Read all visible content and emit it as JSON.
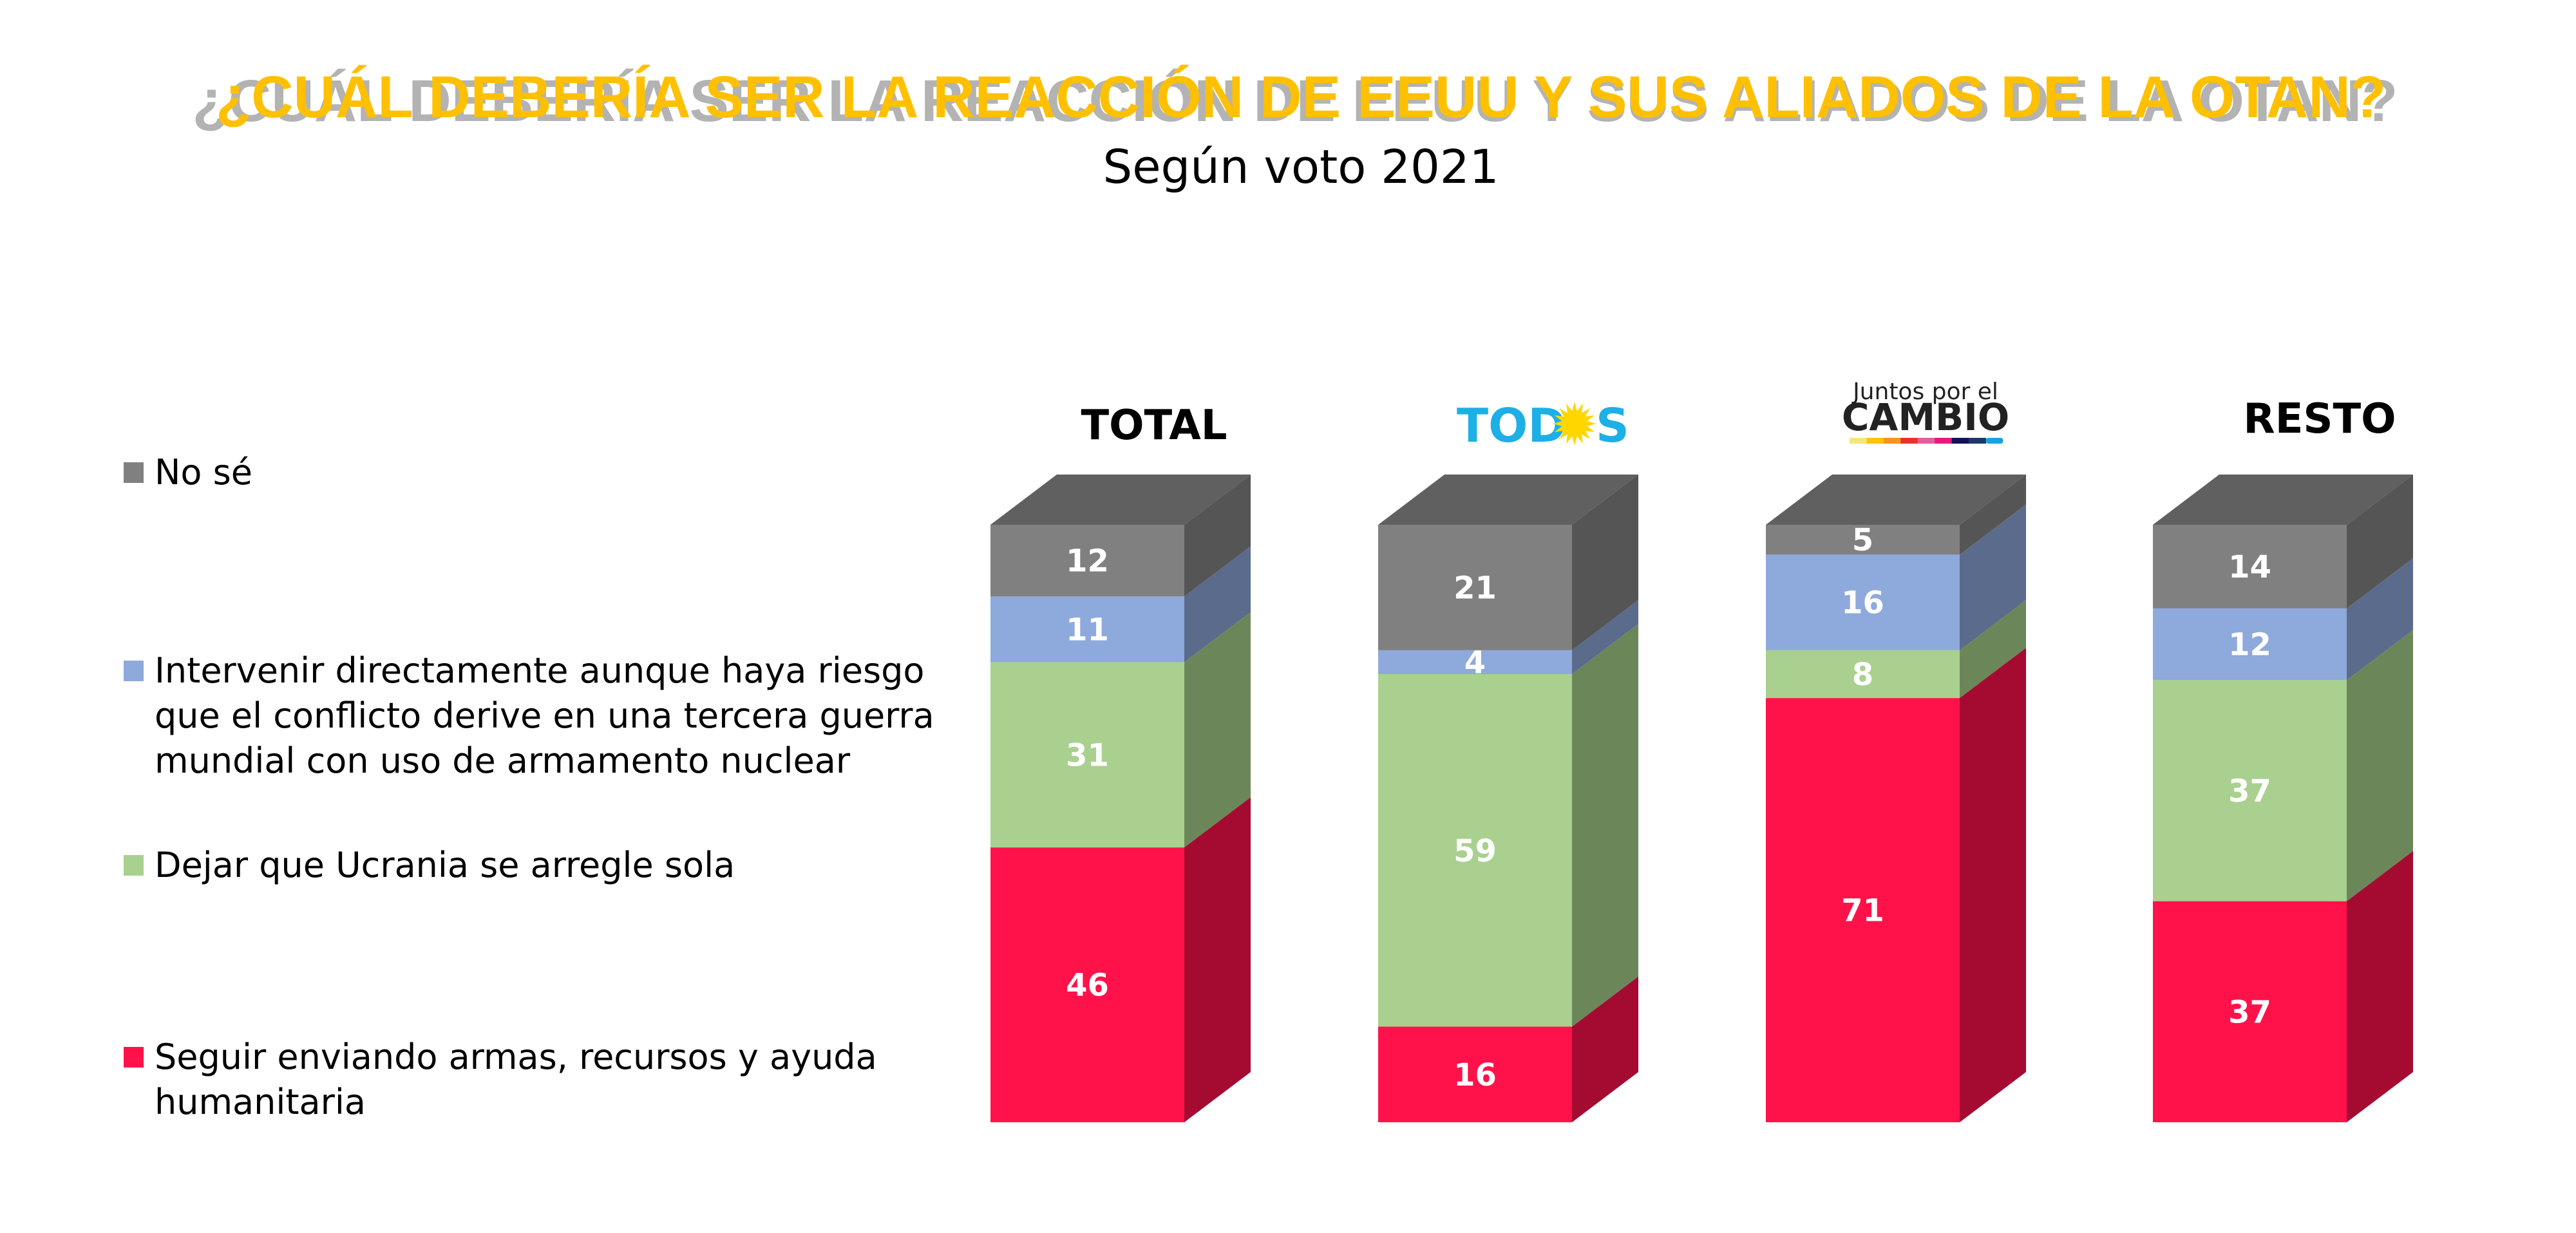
{
  "chart_data": {
    "type": "bar",
    "stacked": true,
    "style": "3d-stacked-100",
    "title": "¿CUÁL DEBERÍA SER LA REACCIÓN DE EEUU Y SUS ALIADOS DE LA OTAN?",
    "subtitle": "Según voto 2021",
    "xlabel": "",
    "ylabel": "",
    "ylim": [
      0,
      100
    ],
    "grid": false,
    "legend_position": "left",
    "categories": [
      "TOTAL",
      "TODOS",
      "Juntos por el CAMBIO",
      "RESTO"
    ],
    "series": [
      {
        "name": "Seguir enviando armas, recursos y ayuda humanitaria",
        "color": "#FF1249",
        "side_color": "#A50B30",
        "values": [
          46,
          16,
          71,
          37
        ]
      },
      {
        "name": "Dejar que Ucrania se arregle sola",
        "color": "#A9D08E",
        "side_color": "#6B875A",
        "values": [
          31,
          59,
          8,
          37
        ]
      },
      {
        "name": "Intervenir directamente aunque haya riesgo que el conflicto derive en una tercera guerra mundial con uso de armamento nuclear",
        "color": "#8EA9DB",
        "side_color": "#5B6B8C",
        "values": [
          11,
          4,
          16,
          12
        ]
      },
      {
        "name": "No sé",
        "color": "#808080",
        "side_color": "#555555",
        "values": [
          12,
          21,
          5,
          14
        ]
      }
    ]
  },
  "header": {
    "title": "¿CUÁL DEBERÍA SER LA REACCIÓN DE EEUU Y SUS ALIADOS DE LA OTAN?",
    "subtitle": "Según voto 2021",
    "title_color": "#FFC000"
  },
  "columns": {
    "total": "TOTAL",
    "todos_prefix": "TOD",
    "todos_suffix": "S",
    "todos_color": "#1CB0E6",
    "todos_sun_color": "#FFD600",
    "juntos_line1": "Juntos por el",
    "juntos_line2": "CAMBIO",
    "juntos_stripe_colors": [
      "#F5E67A",
      "#FFC20E",
      "#F7941D",
      "#E8312F",
      "#E0609E",
      "#E5197E",
      "#101457",
      "#1C3A63",
      "#1BA1E2"
    ],
    "resto": "RESTO"
  },
  "legend": {
    "items": [
      {
        "label_lines": [
          "No sé"
        ],
        "color": "#808080"
      },
      {
        "label_lines": [
          "Intervenir directamente aunque haya riesgo",
          "que el conflicto derive en una tercera guerra",
          "mundial con uso de armamento nuclear"
        ],
        "color": "#8EA9DB"
      },
      {
        "label_lines": [
          "Dejar que Ucrania se arregle sola"
        ],
        "color": "#A9D08E"
      },
      {
        "label_lines": [
          "Seguir enviando armas, recursos y ayuda",
          "humanitaria"
        ],
        "color": "#FF1249"
      }
    ]
  },
  "top_face_color": "#606060",
  "top_side_color": "#555555"
}
